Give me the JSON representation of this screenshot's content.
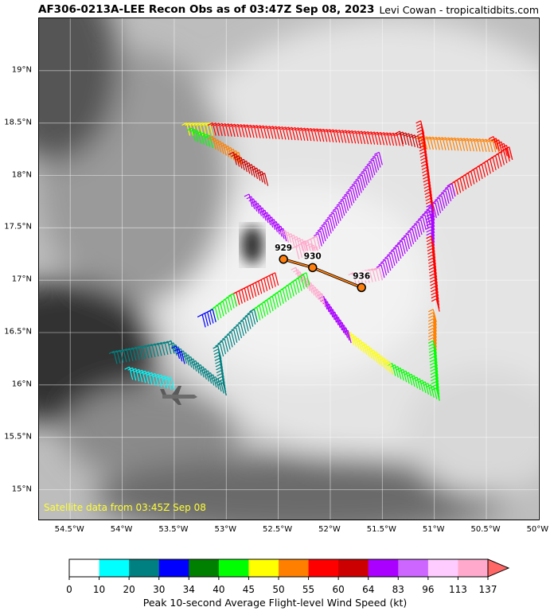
{
  "header": {
    "title": "AF306-0213A-LEE Recon Obs as of 03:47Z Sep 08, 2023",
    "credit": "Levi Cowan - tropicaltidbits.com"
  },
  "map": {
    "satellite_label": "Satellite data from 03:45Z Sep 08",
    "lat_labels": [
      "19°N",
      "18.5°N",
      "18°N",
      "17.5°N",
      "17°N",
      "16.5°N",
      "16°N",
      "15.5°N",
      "15°N"
    ],
    "lon_labels": [
      "54.5°W",
      "54°W",
      "53.5°W",
      "53°W",
      "52.5°W",
      "52°W",
      "51.5°W",
      "51°W",
      "50.5°W",
      "50°W"
    ],
    "pressure_obs": [
      {
        "label": "929",
        "lon": -52.45,
        "lat": 17.2
      },
      {
        "label": "930",
        "lon": -52.17,
        "lat": 17.12
      },
      {
        "label": "936",
        "lon": -51.7,
        "lat": 16.93
      }
    ],
    "flight_track_colors_note": "",
    "colors": {
      "track_line": "#ff7f0e",
      "marker": "#ff7f0e",
      "sat_label": "#ffff33"
    }
  },
  "colorbar": {
    "ticks": [
      "0",
      "10",
      "20",
      "30",
      "34",
      "40",
      "45",
      "50",
      "55",
      "60",
      "64",
      "83",
      "96",
      "113",
      "137"
    ],
    "colors": [
      "#ffffff",
      "#00ffff",
      "#008080",
      "#0000ff",
      "#008000",
      "#00ff00",
      "#ffff00",
      "#ff8000",
      "#ff0000",
      "#cc0000",
      "#aa00ff",
      "#cc66ff",
      "#ffccff",
      "#ffaacc"
    ],
    "title": "Peak 10-second Average Flight-level Wind Speed (kt)"
  }
}
